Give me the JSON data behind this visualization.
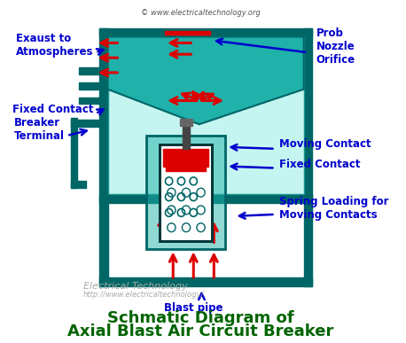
{
  "title_line1": "Schmatic Diagram of",
  "title_line2": "Axial Blast Air Circuit Breaker",
  "watermark": "© www.electricaltechnology.org",
  "watermark2": "Electrical Technology",
  "watermark3": "http://www.electricaltechnology/",
  "bg_color": "#ffffff",
  "teal_color": "#008B8B",
  "teal_light": "#20B2AA",
  "dark_teal": "#006666",
  "red_color": "#DD0000",
  "blue_color": "#0000CC",
  "arrow_blue": "#2222DD",
  "title_color": "#006400",
  "label_color": "#0000CC",
  "labels": {
    "exhaust": "Exaust to\nAtmospheres",
    "prob": "Prob\nNozzle\nOrifice",
    "fixed_contact_left": "Fixed Contact",
    "breaker_terminal": "Breaker\nTerminal",
    "moving_contact": "Moving Contact",
    "fixed_contact_right": "Fixed Contact",
    "spring_loading": "Spring Loading for\nMoving Contacts",
    "blast_pipe": "Blast pipe"
  }
}
